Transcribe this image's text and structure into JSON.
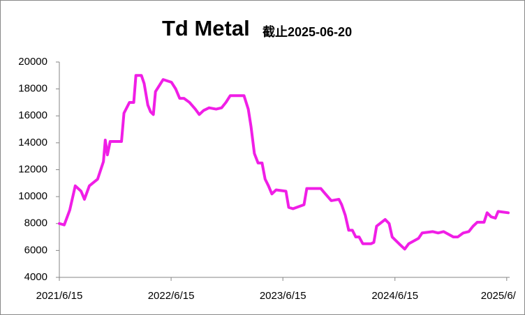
{
  "chart_data": {
    "type": "line",
    "title": "Td Metal",
    "subtitle": "截止2025-06-20",
    "x": [
      "2021-06-15",
      "2021-07-01",
      "2021-07-19",
      "2021-08-06",
      "2021-08-25",
      "2021-09-05",
      "2021-09-21",
      "2021-10-18",
      "2021-11-06",
      "2021-11-12",
      "2021-11-19",
      "2021-11-28",
      "2022-01-04",
      "2022-01-12",
      "2022-01-30",
      "2022-02-13",
      "2022-02-20",
      "2022-03-10",
      "2022-03-19",
      "2022-03-31",
      "2022-04-09",
      "2022-04-18",
      "2022-04-25",
      "2022-05-06",
      "2022-05-20",
      "2022-06-16",
      "2022-06-30",
      "2022-07-13",
      "2022-07-27",
      "2022-08-14",
      "2022-09-02",
      "2022-09-15",
      "2022-09-29",
      "2022-10-17",
      "2022-11-09",
      "2022-11-27",
      "2022-12-11",
      "2022-12-25",
      "2023-02-08",
      "2023-02-22",
      "2023-03-03",
      "2023-03-14",
      "2023-03-26",
      "2023-04-08",
      "2023-04-18",
      "2023-04-29",
      "2023-05-10",
      "2023-05-24",
      "2023-06-25",
      "2023-07-04",
      "2023-07-18",
      "2023-08-23",
      "2023-09-01",
      "2023-10-17",
      "2023-10-28",
      "2023-11-20",
      "2023-12-15",
      "2023-12-24",
      "2024-01-05",
      "2024-01-16",
      "2024-01-28",
      "2024-02-08",
      "2024-02-19",
      "2024-03-02",
      "2024-03-29",
      "2024-04-07",
      "2024-04-16",
      "2024-05-14",
      "2024-05-27",
      "2024-06-06",
      "2024-07-03",
      "2024-07-17",
      "2024-07-30",
      "2024-08-31",
      "2024-09-12",
      "2024-10-16",
      "2024-11-03",
      "2024-11-21",
      "2024-12-23",
      "2025-01-06",
      "2025-01-24",
      "2025-02-11",
      "2025-02-25",
      "2025-03-11",
      "2025-04-02",
      "2025-04-12",
      "2025-04-25",
      "2025-05-09",
      "2025-05-18",
      "2025-06-20"
    ],
    "series": [
      {
        "name": "Td Metal",
        "color": "#f01ee6",
        "values": [
          8000,
          7900,
          9000,
          10800,
          10400,
          9800,
          10800,
          11300,
          12600,
          14200,
          13100,
          14100,
          14100,
          16200,
          17000,
          17000,
          19000,
          19000,
          18400,
          16800,
          16300,
          16100,
          17800,
          18200,
          18700,
          18500,
          18000,
          17300,
          17300,
          17000,
          16500,
          16100,
          16400,
          16600,
          16500,
          16600,
          17000,
          17500,
          17500,
          16500,
          15200,
          13200,
          12500,
          12500,
          11300,
          10800,
          10200,
          10500,
          10400,
          9200,
          9100,
          9400,
          10600,
          10600,
          10300,
          9700,
          9800,
          9400,
          8600,
          7500,
          7500,
          7000,
          7000,
          6500,
          6500,
          6600,
          7800,
          8300,
          8000,
          7000,
          6400,
          6100,
          6500,
          6900,
          7300,
          7400,
          7300,
          7400,
          7000,
          7000,
          7300,
          7400,
          7800,
          8100,
          8100,
          8800,
          8500,
          8400,
          8900,
          8800
        ]
      }
    ],
    "xlim": [
      "2021-06-15",
      "2025-06-20"
    ],
    "xticks": [
      {
        "value": "2021-06-15",
        "label": "2021/6/15"
      },
      {
        "value": "2022-06-15",
        "label": "2022/6/15"
      },
      {
        "value": "2023-06-15",
        "label": "2023/6/15"
      },
      {
        "value": "2024-06-15",
        "label": "2024/6/15"
      },
      {
        "value": "2025-06-15",
        "label": "2025/6/"
      }
    ],
    "ylim": [
      4000,
      20000
    ],
    "yticks": [
      4000,
      6000,
      8000,
      10000,
      12000,
      14000,
      16000,
      18000,
      20000
    ],
    "grid": false
  }
}
